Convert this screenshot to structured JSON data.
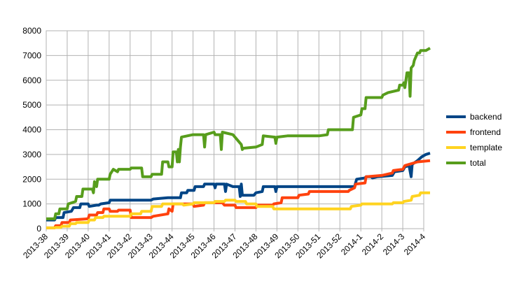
{
  "chart_data": {
    "type": "line",
    "title": "",
    "xlabel": "",
    "ylabel": "",
    "ylim": [
      0,
      8000
    ],
    "yticks": [
      0,
      1000,
      2000,
      3000,
      4000,
      5000,
      6000,
      7000,
      8000
    ],
    "grid": true,
    "legend_position": "right",
    "x_ticks": [
      "2013-38",
      "2013-39",
      "2013-40",
      "2013-41",
      "2013-42",
      "2013-43",
      "2013-44",
      "2013-45",
      "2013-46",
      "2013-47",
      "2013-48",
      "2013-49",
      "2013-50",
      "2013-51",
      "2013-52",
      "2014-1",
      "2014-2",
      "2014-3",
      "2014-4"
    ],
    "series": [
      {
        "name": "backend",
        "color": "#004586",
        "points": [
          [
            0,
            350
          ],
          [
            0.4,
            350
          ],
          [
            0.45,
            450
          ],
          [
            0.8,
            450
          ],
          [
            0.85,
            650
          ],
          [
            1.2,
            700
          ],
          [
            1.3,
            850
          ],
          [
            1.6,
            850
          ],
          [
            1.65,
            1000
          ],
          [
            2.0,
            1000
          ],
          [
            2.05,
            900
          ],
          [
            2.4,
            950
          ],
          [
            2.5,
            950
          ],
          [
            2.6,
            1000
          ],
          [
            3.0,
            1050
          ],
          [
            3.05,
            1150
          ],
          [
            4.0,
            1150
          ],
          [
            4.05,
            1150
          ],
          [
            5.0,
            1150
          ],
          [
            5.1,
            1200
          ],
          [
            5.8,
            1250
          ],
          [
            6.4,
            1250
          ],
          [
            6.45,
            1450
          ],
          [
            6.7,
            1450
          ],
          [
            6.75,
            1550
          ],
          [
            7.05,
            1550
          ],
          [
            7.1,
            1700
          ],
          [
            7.5,
            1700
          ],
          [
            7.55,
            1800
          ],
          [
            8.0,
            1800
          ],
          [
            8.05,
            1650
          ],
          [
            8.1,
            1800
          ],
          [
            8.5,
            1800
          ],
          [
            8.55,
            1500
          ],
          [
            8.6,
            1800
          ],
          [
            8.9,
            1700
          ],
          [
            9.2,
            1700
          ],
          [
            9.25,
            1300
          ],
          [
            9.3,
            1800
          ],
          [
            9.35,
            1350
          ],
          [
            9.9,
            1350
          ],
          [
            10.0,
            1450
          ],
          [
            10.3,
            1500
          ],
          [
            10.35,
            1700
          ],
          [
            10.9,
            1700
          ],
          [
            10.95,
            1500
          ],
          [
            11.0,
            1700
          ],
          [
            12.0,
            1700
          ],
          [
            12.5,
            1700
          ],
          [
            13.0,
            1700
          ],
          [
            14.0,
            1700
          ],
          [
            14.7,
            1700
          ],
          [
            14.8,
            2000
          ],
          [
            15.2,
            2050
          ],
          [
            15.25,
            2100
          ],
          [
            15.5,
            2100
          ],
          [
            15.55,
            2050
          ],
          [
            15.8,
            2100
          ],
          [
            16.5,
            2150
          ],
          [
            16.6,
            2300
          ],
          [
            17.0,
            2350
          ],
          [
            17.1,
            2500
          ],
          [
            17.3,
            2550
          ],
          [
            17.4,
            2100
          ],
          [
            17.45,
            2600
          ],
          [
            17.7,
            2750
          ],
          [
            17.9,
            2900
          ],
          [
            18.1,
            3000
          ],
          [
            18.3,
            3050
          ]
        ]
      },
      {
        "name": "frontend",
        "color": "#ff420e",
        "points": [
          [
            0,
            30
          ],
          [
            0.4,
            30
          ],
          [
            0.45,
            120
          ],
          [
            0.7,
            120
          ],
          [
            0.75,
            250
          ],
          [
            1.1,
            250
          ],
          [
            1.15,
            350
          ],
          [
            2.0,
            400
          ],
          [
            2.05,
            550
          ],
          [
            2.4,
            550
          ],
          [
            2.45,
            650
          ],
          [
            2.7,
            650
          ],
          [
            2.75,
            800
          ],
          [
            3.0,
            800
          ],
          [
            3.05,
            700
          ],
          [
            3.4,
            700
          ],
          [
            3.45,
            750
          ],
          [
            4.0,
            750
          ],
          [
            4.05,
            450
          ],
          [
            5.0,
            450
          ],
          [
            5.1,
            500
          ],
          [
            5.8,
            600
          ],
          [
            5.85,
            800
          ],
          [
            6.0,
            700
          ],
          [
            6.05,
            1000
          ],
          [
            7.0,
            1000
          ],
          [
            7.05,
            900
          ],
          [
            7.5,
            950
          ],
          [
            7.55,
            1050
          ],
          [
            8.4,
            1050
          ],
          [
            8.5,
            950
          ],
          [
            9.0,
            950
          ],
          [
            9.05,
            850
          ],
          [
            10.0,
            850
          ],
          [
            10.05,
            950
          ],
          [
            10.8,
            950
          ],
          [
            10.85,
            1000
          ],
          [
            11.2,
            1050
          ],
          [
            11.25,
            1250
          ],
          [
            12.0,
            1250
          ],
          [
            12.05,
            1350
          ],
          [
            12.5,
            1400
          ],
          [
            12.55,
            1500
          ],
          [
            14.4,
            1500
          ],
          [
            14.45,
            1550
          ],
          [
            14.7,
            1650
          ],
          [
            14.75,
            1800
          ],
          [
            15.2,
            1850
          ],
          [
            15.25,
            2100
          ],
          [
            16.0,
            2150
          ],
          [
            16.5,
            2250
          ],
          [
            16.55,
            2350
          ],
          [
            17.0,
            2400
          ],
          [
            17.1,
            2550
          ],
          [
            17.3,
            2600
          ],
          [
            17.5,
            2650
          ],
          [
            17.7,
            2700
          ],
          [
            18.3,
            2750
          ]
        ]
      },
      {
        "name": "template",
        "color": "#ffd320",
        "points": [
          [
            0,
            30
          ],
          [
            0.4,
            30
          ],
          [
            0.45,
            50
          ],
          [
            0.7,
            50
          ],
          [
            0.75,
            100
          ],
          [
            1.1,
            100
          ],
          [
            1.15,
            200
          ],
          [
            1.4,
            200
          ],
          [
            1.45,
            250
          ],
          [
            2.0,
            250
          ],
          [
            2.05,
            350
          ],
          [
            2.3,
            350
          ],
          [
            2.35,
            450
          ],
          [
            2.7,
            450
          ],
          [
            2.75,
            500
          ],
          [
            4.0,
            500
          ],
          [
            4.05,
            600
          ],
          [
            4.5,
            600
          ],
          [
            4.55,
            700
          ],
          [
            5.0,
            700
          ],
          [
            5.05,
            900
          ],
          [
            5.5,
            900
          ],
          [
            5.55,
            1000
          ],
          [
            6.5,
            1000
          ],
          [
            6.55,
            950
          ],
          [
            7.0,
            1000
          ],
          [
            7.05,
            1050
          ],
          [
            8.0,
            1050
          ],
          [
            8.05,
            1100
          ],
          [
            8.5,
            1100
          ],
          [
            8.55,
            1150
          ],
          [
            9.0,
            1150
          ],
          [
            9.05,
            1100
          ],
          [
            9.5,
            1100
          ],
          [
            9.55,
            1000
          ],
          [
            10.0,
            1000
          ],
          [
            10.05,
            900
          ],
          [
            10.8,
            900
          ],
          [
            10.85,
            800
          ],
          [
            12.0,
            800
          ],
          [
            13.0,
            800
          ],
          [
            14.0,
            800
          ],
          [
            14.5,
            800
          ],
          [
            14.55,
            900
          ],
          [
            15.0,
            950
          ],
          [
            15.05,
            1000
          ],
          [
            16.0,
            1000
          ],
          [
            16.5,
            1000
          ],
          [
            16.55,
            1050
          ],
          [
            17.0,
            1050
          ],
          [
            17.05,
            1100
          ],
          [
            17.4,
            1150
          ],
          [
            17.45,
            1300
          ],
          [
            17.8,
            1350
          ],
          [
            17.85,
            1450
          ],
          [
            18.3,
            1450
          ]
        ]
      },
      {
        "name": "total",
        "color": "#579d1c",
        "points": [
          [
            0,
            400
          ],
          [
            0.4,
            400
          ],
          [
            0.45,
            600
          ],
          [
            0.6,
            600
          ],
          [
            0.65,
            800
          ],
          [
            1.0,
            800
          ],
          [
            1.05,
            1000
          ],
          [
            1.4,
            1100
          ],
          [
            1.45,
            1300
          ],
          [
            1.7,
            1300
          ],
          [
            1.75,
            1600
          ],
          [
            2.2,
            1600
          ],
          [
            2.25,
            1450
          ],
          [
            2.3,
            1900
          ],
          [
            2.4,
            1700
          ],
          [
            2.45,
            2000
          ],
          [
            3.0,
            2000
          ],
          [
            3.05,
            2200
          ],
          [
            3.2,
            2400
          ],
          [
            3.4,
            2300
          ],
          [
            3.45,
            2400
          ],
          [
            4.0,
            2400
          ],
          [
            4.05,
            2450
          ],
          [
            4.55,
            2450
          ],
          [
            4.6,
            2100
          ],
          [
            5.0,
            2100
          ],
          [
            5.05,
            2200
          ],
          [
            5.5,
            2200
          ],
          [
            5.55,
            2700
          ],
          [
            5.8,
            2700
          ],
          [
            5.85,
            2500
          ],
          [
            6.0,
            2500
          ],
          [
            6.05,
            3100
          ],
          [
            6.2,
            3100
          ],
          [
            6.25,
            2700
          ],
          [
            6.3,
            3200
          ],
          [
            6.35,
            2700
          ],
          [
            6.4,
            3300
          ],
          [
            6.45,
            3700
          ],
          [
            7.0,
            3800
          ],
          [
            7.05,
            3800
          ],
          [
            7.5,
            3800
          ],
          [
            7.55,
            3300
          ],
          [
            7.6,
            3800
          ],
          [
            8.0,
            3900
          ],
          [
            8.05,
            3800
          ],
          [
            8.3,
            3800
          ],
          [
            8.35,
            3200
          ],
          [
            8.4,
            3900
          ],
          [
            8.9,
            3800
          ],
          [
            9.3,
            3400
          ],
          [
            9.35,
            3200
          ],
          [
            9.4,
            3250
          ],
          [
            10.0,
            3300
          ],
          [
            10.3,
            3400
          ],
          [
            10.35,
            3750
          ],
          [
            10.9,
            3700
          ],
          [
            10.95,
            3450
          ],
          [
            11.0,
            3700
          ],
          [
            11.5,
            3750
          ],
          [
            12.0,
            3750
          ],
          [
            12.5,
            3750
          ],
          [
            13.0,
            3750
          ],
          [
            13.4,
            3800
          ],
          [
            13.45,
            4000
          ],
          [
            14.0,
            4000
          ],
          [
            14.6,
            4000
          ],
          [
            14.65,
            4500
          ],
          [
            15.0,
            4600
          ],
          [
            15.05,
            4850
          ],
          [
            15.2,
            4850
          ],
          [
            15.25,
            5300
          ],
          [
            16.0,
            5300
          ],
          [
            16.05,
            5400
          ],
          [
            16.3,
            5500
          ],
          [
            16.8,
            5600
          ],
          [
            16.85,
            5800
          ],
          [
            17.0,
            5800
          ],
          [
            17.05,
            5900
          ],
          [
            17.1,
            5700
          ],
          [
            17.2,
            6300
          ],
          [
            17.3,
            6300
          ],
          [
            17.35,
            5350
          ],
          [
            17.4,
            6500
          ],
          [
            17.5,
            6600
          ],
          [
            17.55,
            6800
          ],
          [
            17.7,
            7100
          ],
          [
            17.8,
            7100
          ],
          [
            17.85,
            7200
          ],
          [
            18.1,
            7200
          ],
          [
            18.3,
            7300
          ]
        ]
      }
    ]
  }
}
